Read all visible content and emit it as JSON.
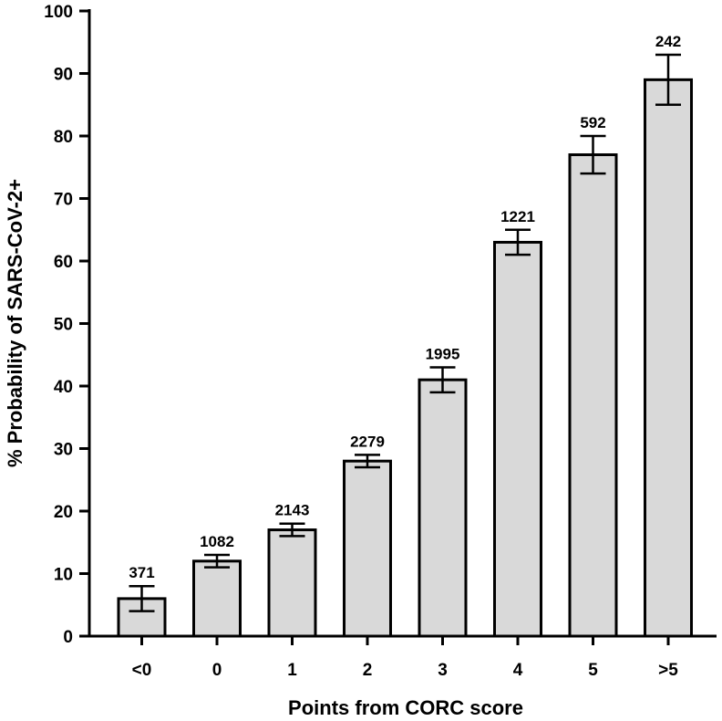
{
  "chart_data": {
    "type": "bar",
    "categories": [
      "<0",
      "0",
      "1",
      "2",
      "3",
      "4",
      "5",
      ">5"
    ],
    "values": [
      6,
      12,
      17,
      28,
      41,
      63,
      77,
      89
    ],
    "error_low": [
      4,
      11,
      16,
      27,
      39,
      61,
      74,
      85
    ],
    "error_high": [
      8,
      13,
      18,
      29,
      43,
      65,
      80,
      93
    ],
    "data_labels": [
      "371",
      "1082",
      "2143",
      "2279",
      "1995",
      "1221",
      "592",
      "242"
    ],
    "xlabel": "Points from CORC score",
    "ylabel": "% Probability  of SARS-CoV-2+",
    "ylim": [
      0,
      100
    ],
    "yticks": [
      0,
      10,
      20,
      30,
      40,
      50,
      60,
      70,
      80,
      90,
      100
    ],
    "grid": false,
    "legend": "none",
    "colors": {
      "bar_fill": "#d9d9d9",
      "bar_stroke": "#000000",
      "error_bar": "#000000"
    }
  }
}
